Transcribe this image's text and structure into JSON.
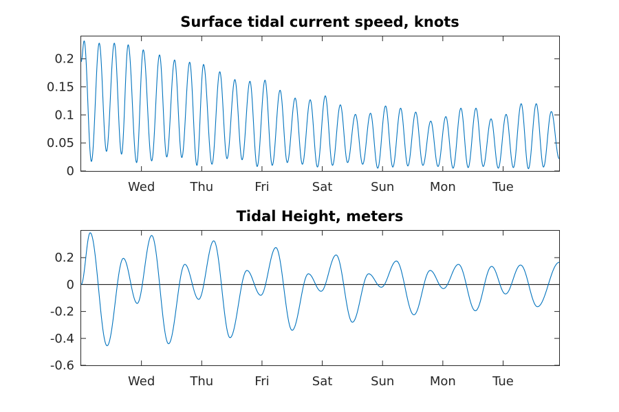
{
  "colors": {
    "series": "#0072BD",
    "axis": "#262626",
    "background": "#FFFFFF"
  },
  "chart_data": [
    {
      "type": "line",
      "title": "Surface tidal current speed, knots",
      "xlabel": "",
      "ylabel": "",
      "xlim": [
        0,
        7.93
      ],
      "ylim": [
        0,
        0.24
      ],
      "x_unit": "days from left axis edge",
      "xticks": [
        {
          "label": "Wed",
          "x": 1.0
        },
        {
          "label": "Thu",
          "x": 2.0
        },
        {
          "label": "Fri",
          "x": 3.0
        },
        {
          "label": "Sat",
          "x": 4.0
        },
        {
          "label": "Sun",
          "x": 5.0
        },
        {
          "label": "Mon",
          "x": 6.0
        },
        {
          "label": "Tue",
          "x": 7.0
        }
      ],
      "yticks": [
        {
          "label": "0",
          "y": 0
        },
        {
          "label": "0.05",
          "y": 0.05
        },
        {
          "label": "0.1",
          "y": 0.1
        },
        {
          "label": "0.15",
          "y": 0.15
        },
        {
          "label": "0.2",
          "y": 0.2
        }
      ],
      "grid": false,
      "series": [
        {
          "peaks": [
            {
              "x": 0.05,
              "y": 0.232
            },
            {
              "x": 0.3,
              "y": 0.228
            },
            {
              "x": 0.55,
              "y": 0.228
            },
            {
              "x": 0.78,
              "y": 0.225
            },
            {
              "x": 1.03,
              "y": 0.216
            },
            {
              "x": 1.3,
              "y": 0.207
            },
            {
              "x": 1.55,
              "y": 0.198
            },
            {
              "x": 1.8,
              "y": 0.194
            },
            {
              "x": 2.03,
              "y": 0.19
            },
            {
              "x": 2.3,
              "y": 0.177
            },
            {
              "x": 2.55,
              "y": 0.163
            },
            {
              "x": 2.8,
              "y": 0.16
            },
            {
              "x": 3.05,
              "y": 0.162
            },
            {
              "x": 3.3,
              "y": 0.144
            },
            {
              "x": 3.55,
              "y": 0.13
            },
            {
              "x": 3.8,
              "y": 0.127
            },
            {
              "x": 4.05,
              "y": 0.134
            },
            {
              "x": 4.3,
              "y": 0.118
            },
            {
              "x": 4.55,
              "y": 0.101
            },
            {
              "x": 4.8,
              "y": 0.103
            },
            {
              "x": 5.05,
              "y": 0.116
            },
            {
              "x": 5.3,
              "y": 0.112
            },
            {
              "x": 5.55,
              "y": 0.105
            },
            {
              "x": 5.8,
              "y": 0.089
            },
            {
              "x": 6.05,
              "y": 0.097
            },
            {
              "x": 6.3,
              "y": 0.112
            },
            {
              "x": 6.55,
              "y": 0.112
            },
            {
              "x": 6.8,
              "y": 0.093
            },
            {
              "x": 7.05,
              "y": 0.101
            },
            {
              "x": 7.3,
              "y": 0.12
            },
            {
              "x": 7.55,
              "y": 0.12
            },
            {
              "x": 7.8,
              "y": 0.106
            }
          ],
          "troughs": [
            {
              "x": 0.17,
              "y": 0.017
            },
            {
              "x": 0.42,
              "y": 0.035
            },
            {
              "x": 0.67,
              "y": 0.03
            },
            {
              "x": 0.92,
              "y": 0.015
            },
            {
              "x": 1.17,
              "y": 0.018
            },
            {
              "x": 1.42,
              "y": 0.025
            },
            {
              "x": 1.67,
              "y": 0.024
            },
            {
              "x": 1.92,
              "y": 0.01
            },
            {
              "x": 2.17,
              "y": 0.012
            },
            {
              "x": 2.42,
              "y": 0.022
            },
            {
              "x": 2.67,
              "y": 0.02
            },
            {
              "x": 2.92,
              "y": 0.008
            },
            {
              "x": 3.17,
              "y": 0.01
            },
            {
              "x": 3.42,
              "y": 0.015
            },
            {
              "x": 3.67,
              "y": 0.012
            },
            {
              "x": 3.92,
              "y": 0.007
            },
            {
              "x": 4.17,
              "y": 0.01
            },
            {
              "x": 4.42,
              "y": 0.015
            },
            {
              "x": 4.67,
              "y": 0.012
            },
            {
              "x": 4.92,
              "y": 0.005
            },
            {
              "x": 5.17,
              "y": 0.007
            },
            {
              "x": 5.42,
              "y": 0.009
            },
            {
              "x": 5.67,
              "y": 0.01
            },
            {
              "x": 5.92,
              "y": 0.008
            },
            {
              "x": 6.17,
              "y": 0.005
            },
            {
              "x": 6.42,
              "y": 0.006
            },
            {
              "x": 6.67,
              "y": 0.008
            },
            {
              "x": 6.92,
              "y": 0.005
            },
            {
              "x": 7.17,
              "y": 0.006
            },
            {
              "x": 7.42,
              "y": 0.004
            },
            {
              "x": 7.67,
              "y": 0.007
            }
          ]
        }
      ]
    },
    {
      "type": "line",
      "title": "Tidal Height, meters",
      "xlabel": "",
      "ylabel": "",
      "xlim": [
        0,
        7.93
      ],
      "ylim": [
        -0.6,
        0.4
      ],
      "x_unit": "days from left axis edge",
      "xticks": [
        {
          "label": "Wed",
          "x": 1.0
        },
        {
          "label": "Thu",
          "x": 2.0
        },
        {
          "label": "Fri",
          "x": 3.0
        },
        {
          "label": "Sat",
          "x": 4.0
        },
        {
          "label": "Sun",
          "x": 5.0
        },
        {
          "label": "Mon",
          "x": 6.0
        },
        {
          "label": "Tue",
          "x": 7.0
        }
      ],
      "yticks": [
        {
          "label": "-0.6",
          "y": -0.6
        },
        {
          "label": "-0.4",
          "y": -0.4
        },
        {
          "label": "-0.2",
          "y": -0.2
        },
        {
          "label": "0",
          "y": 0
        },
        {
          "label": "0.2",
          "y": 0.2
        }
      ],
      "zero_line": true,
      "grid": false,
      "series": [
        {
          "extrema": [
            {
              "x": 0.0,
              "y": 0.0
            },
            {
              "x": 0.15,
              "y": 0.385
            },
            {
              "x": 0.43,
              "y": -0.455
            },
            {
              "x": 0.7,
              "y": 0.195
            },
            {
              "x": 0.93,
              "y": -0.14
            },
            {
              "x": 1.17,
              "y": 0.365
            },
            {
              "x": 1.45,
              "y": -0.44
            },
            {
              "x": 1.72,
              "y": 0.15
            },
            {
              "x": 1.95,
              "y": -0.11
            },
            {
              "x": 2.2,
              "y": 0.325
            },
            {
              "x": 2.47,
              "y": -0.395
            },
            {
              "x": 2.75,
              "y": 0.105
            },
            {
              "x": 2.98,
              "y": -0.08
            },
            {
              "x": 3.23,
              "y": 0.275
            },
            {
              "x": 3.5,
              "y": -0.34
            },
            {
              "x": 3.77,
              "y": 0.08
            },
            {
              "x": 3.98,
              "y": -0.05
            },
            {
              "x": 4.23,
              "y": 0.22
            },
            {
              "x": 4.5,
              "y": -0.28
            },
            {
              "x": 4.77,
              "y": 0.08
            },
            {
              "x": 4.98,
              "y": -0.02
            },
            {
              "x": 5.23,
              "y": 0.175
            },
            {
              "x": 5.52,
              "y": -0.225
            },
            {
              "x": 5.79,
              "y": 0.105
            },
            {
              "x": 6.01,
              "y": -0.03
            },
            {
              "x": 6.26,
              "y": 0.15
            },
            {
              "x": 6.54,
              "y": -0.195
            },
            {
              "x": 6.81,
              "y": 0.135
            },
            {
              "x": 7.04,
              "y": -0.07
            },
            {
              "x": 7.29,
              "y": 0.145
            },
            {
              "x": 7.57,
              "y": -0.165
            },
            {
              "x": 7.93,
              "y": 0.165
            }
          ]
        }
      ]
    }
  ]
}
